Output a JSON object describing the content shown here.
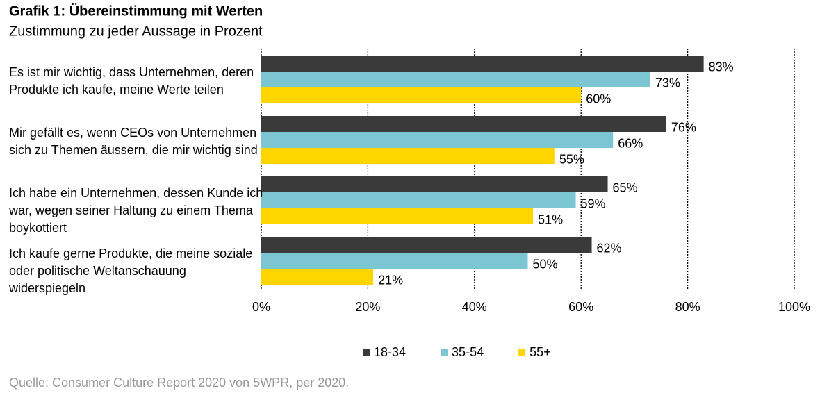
{
  "chart_data": {
    "type": "hbar",
    "title": "Grafik 1: Übereinstimmung mit Werten",
    "subtitle": "Zustimmung zu jeder Aussage in Prozent",
    "source": "Quelle: Consumer Culture Report 2020 von 5WPR, per 2020.",
    "categories": [
      "Es ist mir wichtig, dass Unternehmen, deren Produkte ich kaufe, meine Werte teilen",
      "Mir gefällt es, wenn CEOs von Unternehmen sich zu Themen äussern, die mir wichtig sind",
      "Ich habe ein Unternehmen, dessen Kunde ich war, wegen seiner Haltung zu einem Thema boykottiert",
      "Ich kaufe gerne Produkte, die meine soziale oder politische Weltanschauung widerspiegeln"
    ],
    "series": [
      {
        "name": "18-34",
        "color": "#3a3a3a",
        "values": [
          83,
          76,
          65,
          62
        ],
        "value_labels": [
          "83%",
          "76%",
          "65%",
          "62%"
        ]
      },
      {
        "name": "35-54",
        "color": "#7cc5d2",
        "values": [
          73,
          66,
          59,
          50
        ],
        "value_labels": [
          "73%",
          "66%",
          "59%",
          "50%"
        ]
      },
      {
        "name": "55+",
        "color": "#ffd500",
        "values": [
          60,
          55,
          51,
          21
        ],
        "value_labels": [
          "60%",
          "55%",
          "51%",
          "21%"
        ]
      }
    ],
    "xlim": [
      0,
      100
    ],
    "xticks": [
      {
        "value": 0,
        "label": "0%"
      },
      {
        "value": 20,
        "label": "20%"
      },
      {
        "value": 40,
        "label": "40%"
      },
      {
        "value": 60,
        "label": "60%"
      },
      {
        "value": 80,
        "label": "80%"
      },
      {
        "value": 100,
        "label": "100%"
      }
    ],
    "grid": true,
    "legend": "bottom"
  }
}
